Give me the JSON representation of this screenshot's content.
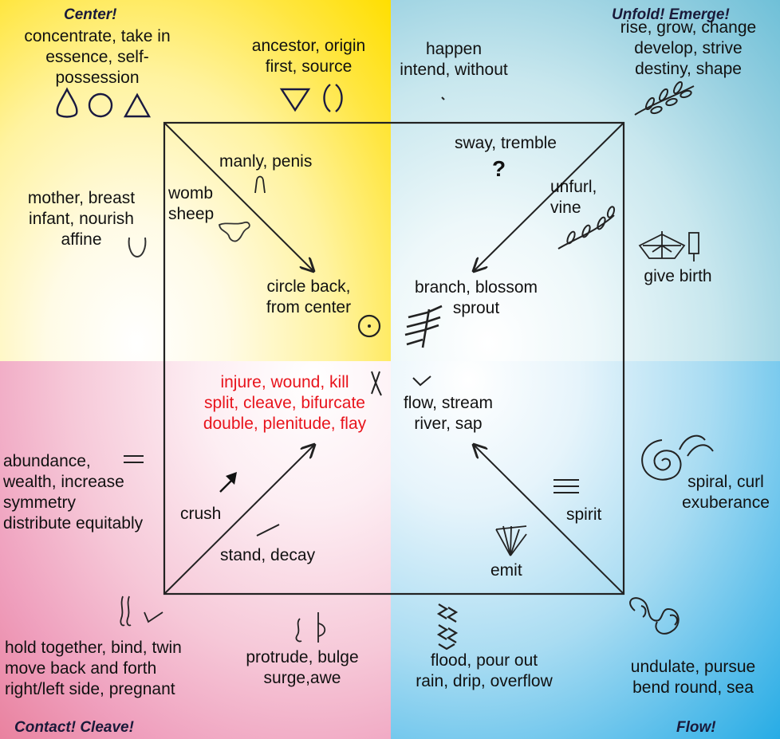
{
  "headings": {
    "center": "Center!",
    "unfold": "Unfold!  Emerge!",
    "contact": "Contact!  Cleave!",
    "flow": "Flow!"
  },
  "labels": {
    "concentrate": "concentrate, take in\nessence, self-\npossession",
    "ancestor": "ancestor, origin\nfirst, source",
    "happen": "happen\nintend, without",
    "rise": "rise, grow, change\ndevelop, strive\ndestiny, shape",
    "sway": "sway, tremble",
    "question": "?",
    "manly": "manly, penis",
    "womb": "womb\nsheep",
    "unfurl": "unfurl,\nvine",
    "mother": "mother, breast\ninfant, nourish\naffine",
    "give_birth": "give birth",
    "circle_back": "circle back,\nfrom center",
    "branch": "branch, blossom\nsprout",
    "injure": "injure, wound, kill\nsplit, cleave, bifurcate\ndouble, plenitude, flay",
    "flow_stream": "flow, stream\nriver, sap",
    "abundance": "abundance,\nwealth, increase\nsymmetry\ndistribute equitably",
    "crush": "crush",
    "stand": "stand, decay",
    "spirit": "spirit",
    "emit": "emit",
    "spiral": "spiral, curl\nexuberance",
    "hold": "hold together, bind, twin\nmove back and forth\nright/left side, pregnant",
    "protrude": "protrude, bulge\nsurge,awe",
    "flood": "flood, pour out\nrain, drip, overflow",
    "undulate": "undulate, pursue\nbend round, sea"
  },
  "colors": {
    "center_quadrant": "#ffdf00",
    "unfold_quadrant": "#6fc0d8",
    "contact_quadrant": "#e9829f",
    "flow_quadrant": "#27ace5",
    "highlight_text": "#e8141c",
    "line": "#222222"
  },
  "icons": [
    "nose-glyph-icon",
    "circle-glyph-icon",
    "triangle-glyph-icon",
    "inverted-triangle-glyph-icon",
    "parentheses-glyph-icon",
    "vine-glyph-icon",
    "penis-glyph-icon",
    "sheep-glyph-icon",
    "breast-glyph-icon",
    "birth-glyph-icon",
    "dotted-circle-glyph-icon",
    "branch-glyph-icon",
    "cross-glyph-icon",
    "chevron-glyph-icon",
    "equals-glyph-icon",
    "arrow-glyph-icon",
    "stroke-glyph-icon",
    "triple-bar-glyph-icon",
    "fan-glyph-icon",
    "spiral-glyph-icon",
    "curl-glyph-icon",
    "squiggle-glyph-icon",
    "bulge-glyph-icon",
    "zigzag-glyph-icon",
    "loops-glyph-icon"
  ]
}
